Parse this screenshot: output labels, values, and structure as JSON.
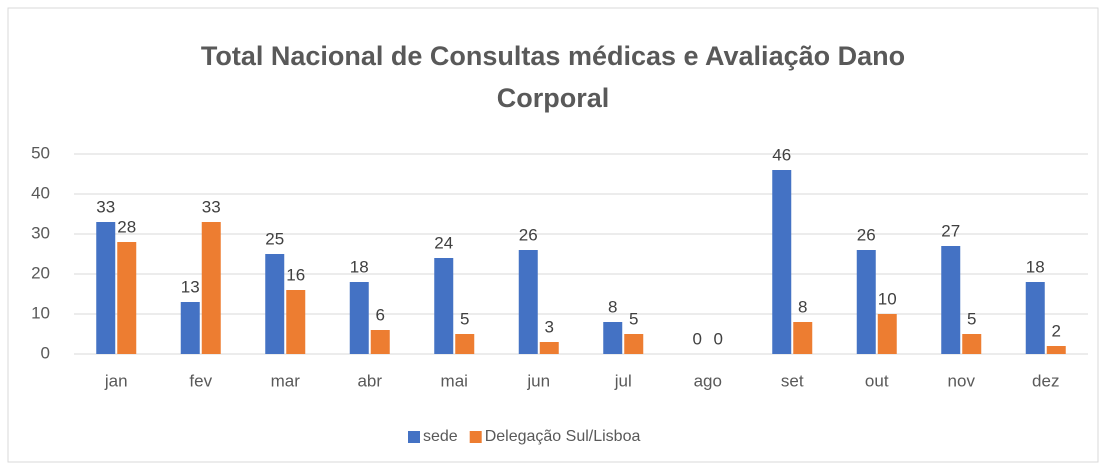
{
  "chart_data": {
    "type": "bar",
    "title": "Total Nacional de Consultas médicas e Avaliação Dano Corporal",
    "categories": [
      "jan",
      "fev",
      "mar",
      "abr",
      "mai",
      "jun",
      "jul",
      "ago",
      "set",
      "out",
      "nov",
      "dez"
    ],
    "series": [
      {
        "name": "sede",
        "color": "#4472c4",
        "values": [
          33,
          13,
          25,
          18,
          24,
          26,
          8,
          0,
          46,
          26,
          27,
          18
        ]
      },
      {
        "name": "Delegação Sul/Lisboa",
        "color": "#ed7d31",
        "values": [
          28,
          33,
          16,
          6,
          5,
          3,
          5,
          0,
          8,
          10,
          5,
          2
        ]
      }
    ],
    "ylim": [
      0,
      50
    ],
    "yticks": [
      0,
      10,
      20,
      30,
      40,
      50
    ],
    "grid": true,
    "legend": "bottom"
  }
}
